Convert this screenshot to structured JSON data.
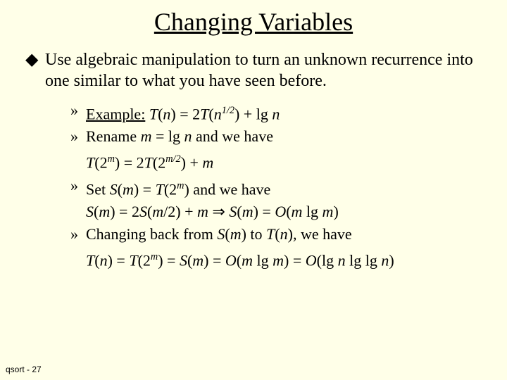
{
  "colors": {
    "background": "#ffffe8",
    "text": "#000000"
  },
  "typography": {
    "title_fontsize": 36,
    "body_fontsize": 24,
    "sub_fontsize": 22,
    "footer_fontsize": 12,
    "font_family": "Times New Roman"
  },
  "title": "Changing Variables",
  "bullet": {
    "symbol": "◆",
    "text": "Use algebraic manipulation to turn an unknown recurrence into one similar to what you have seen before."
  },
  "sub_symbol": "»",
  "items": [
    {
      "prefix_underlined": "Example:",
      "rest_html": " <span class='it'>T</span>(<span class='it'>n</span>) = 2<span class='it'>T</span>(<span class='it'>n</span><sup>1/2</sup>) + lg <span class='it'>n</span>"
    },
    {
      "line_html": "Rename  <span class='it'>m</span> = lg <span class='it'>n</span>  and  we have",
      "cont_html": "<span class='it'>T</span>(2<sup>m</sup>) = 2<span class='it'>T</span>(2<sup>m/2</sup>) + <span class='it'>m</span>"
    },
    {
      "line_html": "Set  <span class='it'>S</span>(<span class='it'>m</span>) = <span class='it'>T</span>(2<sup>m</sup>)  and  we have",
      "cont_html": "<span class='it'>S</span>(<span class='it'>m</span>) = 2<span class='it'>S</span>(<span class='it'>m</span>/2) + <span class='it'>m</span> ⇒ <span class='it'>S</span>(<span class='it'>m</span>) = <span class='it'>O</span>(<span class='it'>m</span> lg <span class='it'>m</span>)"
    },
    {
      "line_html": "Changing back from <span class='it'>S</span>(<span class='it'>m</span>) to <span class='it'>T</span>(<span class='it'>n</span>)<span class='it'>,</span> we have",
      "cont_html": "<span class='it'>T</span>(<span class='it'>n</span>) = <span class='it'>T</span>(2<sup>m</sup>) = <span class='it'>S</span>(<span class='it'>m</span>) = <span class='it'>O</span>(<span class='it'>m</span> lg <span class='it'>m</span>) = <span class='it'>O</span>(lg <span class='it'>n</span> lg lg <span class='it'>n</span>)"
    }
  ],
  "footer": "qsort - 27"
}
